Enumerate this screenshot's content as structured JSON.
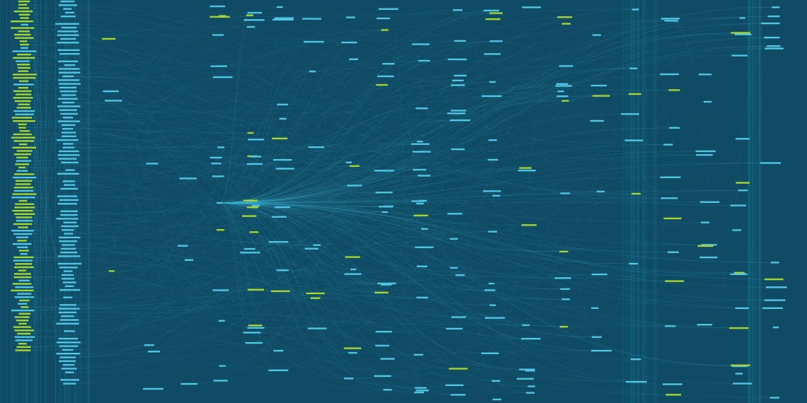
{
  "graph": {
    "type": "dependency-graph",
    "colors": {
      "background": "#0f4b64",
      "node_primary": "#a6d432",
      "node_secondary": "#52c4e4",
      "edge": "#3fb6d6",
      "column_band": "#1a6f8a"
    },
    "hub_node_icon": "node-hub"
  }
}
